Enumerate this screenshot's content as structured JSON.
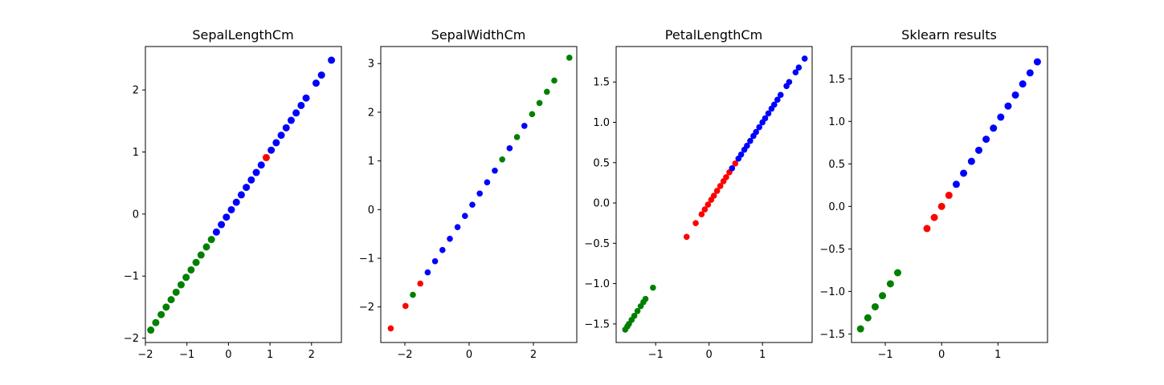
{
  "chart_data": [
    {
      "type": "scatter",
      "title": "SepalLengthCm",
      "xlim": [
        -2.0,
        2.72
      ],
      "ylim": [
        -2.07,
        2.7
      ],
      "xticks": [
        -2,
        -1,
        0,
        1,
        2
      ],
      "yticks": [
        -2,
        -1,
        0,
        1,
        2
      ],
      "grid": false,
      "groups": [
        {
          "color": "#008000",
          "x": [
            -1.87,
            -1.75,
            -1.62,
            -1.5,
            -1.38,
            -1.26,
            -1.14,
            -1.02,
            -0.9,
            -0.78,
            -0.66,
            -0.53,
            -0.41
          ],
          "y": [
            -1.87,
            -1.75,
            -1.62,
            -1.5,
            -1.38,
            -1.26,
            -1.14,
            -1.02,
            -0.9,
            -0.78,
            -0.66,
            -0.53,
            -0.41
          ]
        },
        {
          "color": "#ff0000",
          "x": [
            0.91
          ],
          "y": [
            0.91
          ]
        },
        {
          "color": "#0000ff",
          "x": [
            -0.29,
            -0.17,
            -0.05,
            0.07,
            0.19,
            0.31,
            0.43,
            0.55,
            0.67,
            0.79,
            1.03,
            1.15,
            1.27,
            1.39,
            1.51,
            1.63,
            1.75,
            1.87,
            2.11,
            2.24,
            2.48
          ],
          "y": [
            -0.29,
            -0.17,
            -0.05,
            0.07,
            0.19,
            0.31,
            0.43,
            0.55,
            0.67,
            0.79,
            1.03,
            1.15,
            1.27,
            1.39,
            1.51,
            1.63,
            1.75,
            1.87,
            2.11,
            2.24,
            2.48
          ]
        }
      ]
    },
    {
      "type": "scatter",
      "title": "SepalWidthCm",
      "xlim": [
        -2.75,
        3.35
      ],
      "ylim": [
        -2.73,
        3.35
      ],
      "xticks": [
        -2,
        0,
        2
      ],
      "yticks": [
        -2,
        -1,
        0,
        1,
        2,
        3
      ],
      "grid": false,
      "groups": [
        {
          "color": "#ff0000",
          "x": [
            -2.44,
            -1.98,
            -1.52
          ],
          "y": [
            -2.44,
            -1.98,
            -1.52
          ]
        },
        {
          "color": "#008000",
          "x": [
            -1.75,
            1.03,
            1.49,
            1.96,
            2.19,
            2.42,
            2.65,
            3.12
          ],
          "y": [
            -1.75,
            1.03,
            1.49,
            1.96,
            2.19,
            2.42,
            2.65,
            3.12
          ]
        },
        {
          "color": "#0000ff",
          "x": [
            -1.29,
            -1.06,
            -0.83,
            -0.6,
            -0.36,
            -0.13,
            0.1,
            0.33,
            0.56,
            0.8,
            1.26,
            1.72
          ],
          "y": [
            -1.29,
            -1.06,
            -0.83,
            -0.6,
            -0.36,
            -0.13,
            0.1,
            0.33,
            0.56,
            0.8,
            1.26,
            1.72
          ]
        }
      ]
    },
    {
      "type": "scatter",
      "title": "PetalLengthCm",
      "xlim": [
        -1.74,
        1.93
      ],
      "ylim": [
        -1.73,
        1.94
      ],
      "xticks": [
        -1,
        0,
        1
      ],
      "yticks": [
        -1.5,
        -1.0,
        -0.5,
        0.0,
        0.5,
        1.0,
        1.5
      ],
      "grid": false,
      "groups": [
        {
          "color": "#008000",
          "x": [
            -1.57,
            -1.53,
            -1.5,
            -1.45,
            -1.4,
            -1.34,
            -1.28,
            -1.23,
            -1.19,
            -1.05
          ],
          "y": [
            -1.57,
            -1.53,
            -1.5,
            -1.45,
            -1.4,
            -1.34,
            -1.28,
            -1.23,
            -1.19,
            -1.05
          ]
        },
        {
          "color": "#ff0000",
          "x": [
            -0.42,
            -0.25,
            -0.14,
            -0.08,
            -0.02,
            0.04,
            0.09,
            0.15,
            0.21,
            0.27,
            0.32,
            0.38,
            0.49
          ],
          "y": [
            -0.42,
            -0.25,
            -0.14,
            -0.08,
            -0.02,
            0.04,
            0.09,
            0.15,
            0.21,
            0.27,
            0.32,
            0.38,
            0.49
          ]
        },
        {
          "color": "#0000ff",
          "x": [
            0.43,
            0.55,
            0.6,
            0.66,
            0.71,
            0.77,
            0.83,
            0.88,
            0.94,
            1.0,
            1.05,
            1.11,
            1.17,
            1.22,
            1.28,
            1.34,
            1.45,
            1.5,
            1.62,
            1.68,
            1.79
          ],
          "y": [
            0.43,
            0.55,
            0.6,
            0.66,
            0.71,
            0.77,
            0.83,
            0.88,
            0.94,
            1.0,
            1.05,
            1.11,
            1.17,
            1.22,
            1.28,
            1.34,
            1.45,
            1.5,
            1.62,
            1.68,
            1.79
          ]
        }
      ]
    },
    {
      "type": "scatter",
      "title": "Sklearn results",
      "xlim": [
        -1.6,
        1.88
      ],
      "ylim": [
        -1.6,
        1.88
      ],
      "xticks": [
        -1,
        0,
        1
      ],
      "yticks": [
        -1.5,
        -1.0,
        -0.5,
        0.0,
        0.5,
        1.0,
        1.5
      ],
      "grid": false,
      "groups": [
        {
          "color": "#008000",
          "x": [
            -1.44,
            -1.31,
            -1.18,
            -1.05,
            -0.91,
            -0.78
          ],
          "y": [
            -1.44,
            -1.31,
            -1.18,
            -1.05,
            -0.91,
            -0.78
          ]
        },
        {
          "color": "#ff0000",
          "x": [
            -0.26,
            -0.13,
            0.0,
            0.13
          ],
          "y": [
            -0.26,
            -0.13,
            0.0,
            0.13
          ]
        },
        {
          "color": "#0000ff",
          "x": [
            0.26,
            0.39,
            0.53,
            0.66,
            0.79,
            0.92,
            1.05,
            1.18,
            1.31,
            1.44,
            1.57,
            1.7
          ],
          "y": [
            0.26,
            0.39,
            0.53,
            0.66,
            0.79,
            0.92,
            1.05,
            1.18,
            1.31,
            1.44,
            1.57,
            1.7
          ]
        }
      ]
    }
  ]
}
